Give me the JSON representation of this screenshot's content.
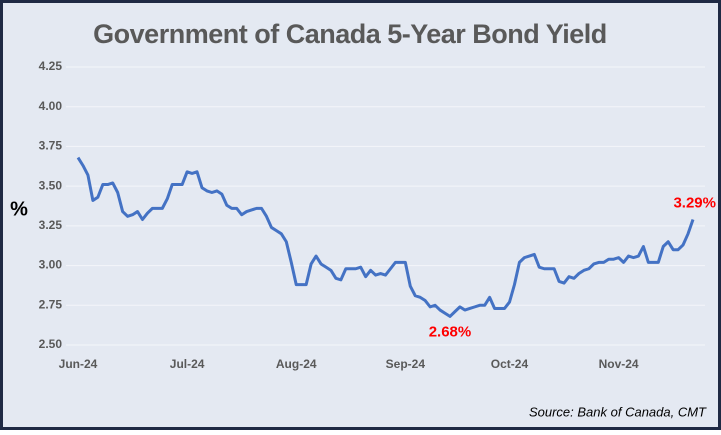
{
  "chart_data": {
    "type": "line",
    "title": "Government of Canada 5-Year Bond Yield",
    "y_label": "%",
    "source": "Source: Bank of Canada, CMT",
    "categories": [
      "Jun-24",
      null,
      null,
      null,
      null,
      null,
      null,
      null,
      null,
      null,
      null,
      null,
      null,
      null,
      null,
      null,
      null,
      null,
      null,
      null,
      null,
      null,
      "Jul-24",
      null,
      null,
      null,
      null,
      null,
      null,
      null,
      null,
      null,
      null,
      null,
      null,
      null,
      null,
      null,
      null,
      null,
      null,
      null,
      null,
      null,
      "Aug-24",
      null,
      null,
      null,
      null,
      null,
      null,
      null,
      null,
      null,
      null,
      null,
      null,
      null,
      null,
      null,
      null,
      null,
      null,
      null,
      null,
      null,
      "Sep-24",
      null,
      null,
      null,
      null,
      null,
      null,
      null,
      null,
      null,
      null,
      null,
      null,
      null,
      null,
      null,
      null,
      null,
      null,
      null,
      null,
      "Oct-24",
      null,
      null,
      null,
      null,
      null,
      null,
      null,
      null,
      null,
      null,
      null,
      null,
      null,
      null,
      null,
      null,
      null,
      null,
      null,
      null,
      null,
      "Nov-24",
      null,
      null,
      null,
      null,
      null,
      null,
      null,
      null,
      null,
      null,
      null,
      null,
      null,
      null,
      null
    ],
    "series": [
      {
        "name": "5-Year Bond Yield",
        "color": "#4472c4",
        "values": [
          3.68,
          3.63,
          3.57,
          3.41,
          3.43,
          3.51,
          3.51,
          3.52,
          3.46,
          3.34,
          3.31,
          3.32,
          3.34,
          3.29,
          3.33,
          3.36,
          3.36,
          3.36,
          3.42,
          3.51,
          3.51,
          3.51,
          3.59,
          3.58,
          3.59,
          3.49,
          3.47,
          3.46,
          3.47,
          3.45,
          3.38,
          3.36,
          3.36,
          3.32,
          3.34,
          3.35,
          3.36,
          3.36,
          3.31,
          3.24,
          3.22,
          3.2,
          3.15,
          3.02,
          2.88,
          2.88,
          2.88,
          3.01,
          3.06,
          3.01,
          2.99,
          2.97,
          2.92,
          2.91,
          2.98,
          2.98,
          2.98,
          2.99,
          2.93,
          2.97,
          2.94,
          2.95,
          2.94,
          2.98,
          3.02,
          3.02,
          3.02,
          2.87,
          2.81,
          2.8,
          2.78,
          2.74,
          2.75,
          2.72,
          2.7,
          2.68,
          2.71,
          2.74,
          2.72,
          2.73,
          2.74,
          2.75,
          2.75,
          2.8,
          2.73,
          2.73,
          2.73,
          2.77,
          2.88,
          3.02,
          3.05,
          3.06,
          3.07,
          2.99,
          2.98,
          2.98,
          2.98,
          2.9,
          2.89,
          2.93,
          2.92,
          2.95,
          2.97,
          2.98,
          3.01,
          3.02,
          3.02,
          3.04,
          3.04,
          3.05,
          3.02,
          3.06,
          3.05,
          3.06,
          3.12,
          3.02,
          3.02,
          3.02,
          3.12,
          3.15,
          3.1,
          3.1,
          3.13,
          3.2,
          3.29
        ],
        "value_labels": [
          null,
          null,
          null,
          null,
          null,
          null,
          null,
          null,
          null,
          null,
          null,
          null,
          null,
          null,
          null,
          null,
          null,
          null,
          null,
          null,
          null,
          null,
          null,
          null,
          null,
          null,
          null,
          null,
          null,
          null,
          null,
          null,
          null,
          null,
          null,
          null,
          null,
          null,
          null,
          null,
          null,
          null,
          null,
          null,
          null,
          null,
          null,
          null,
          null,
          null,
          null,
          null,
          null,
          null,
          null,
          null,
          null,
          null,
          null,
          null,
          null,
          null,
          null,
          null,
          null,
          null,
          null,
          null,
          null,
          null,
          null,
          null,
          null,
          null,
          null,
          "2.68%",
          null,
          null,
          null,
          null,
          null,
          null,
          null,
          null,
          null,
          null,
          null,
          null,
          null,
          null,
          null,
          null,
          null,
          null,
          null,
          null,
          null,
          null,
          null,
          null,
          null,
          null,
          null,
          null,
          null,
          null,
          null,
          null,
          null,
          null,
          null,
          null,
          null,
          null,
          null,
          null,
          null,
          null,
          null,
          null,
          null,
          null,
          null,
          null,
          "3.29%"
        ]
      }
    ],
    "ylim": [
      2.5,
      4.25
    ],
    "yticks": [
      {
        "value": 2.5,
        "label": "2.50"
      },
      2.75,
      {
        "value": 3,
        "label": "3.00"
      },
      3.25,
      {
        "value": 3.5,
        "label": "3.50"
      },
      3.75,
      {
        "value": 4,
        "label": "4.00"
      },
      4.25
    ],
    "grid": true
  }
}
